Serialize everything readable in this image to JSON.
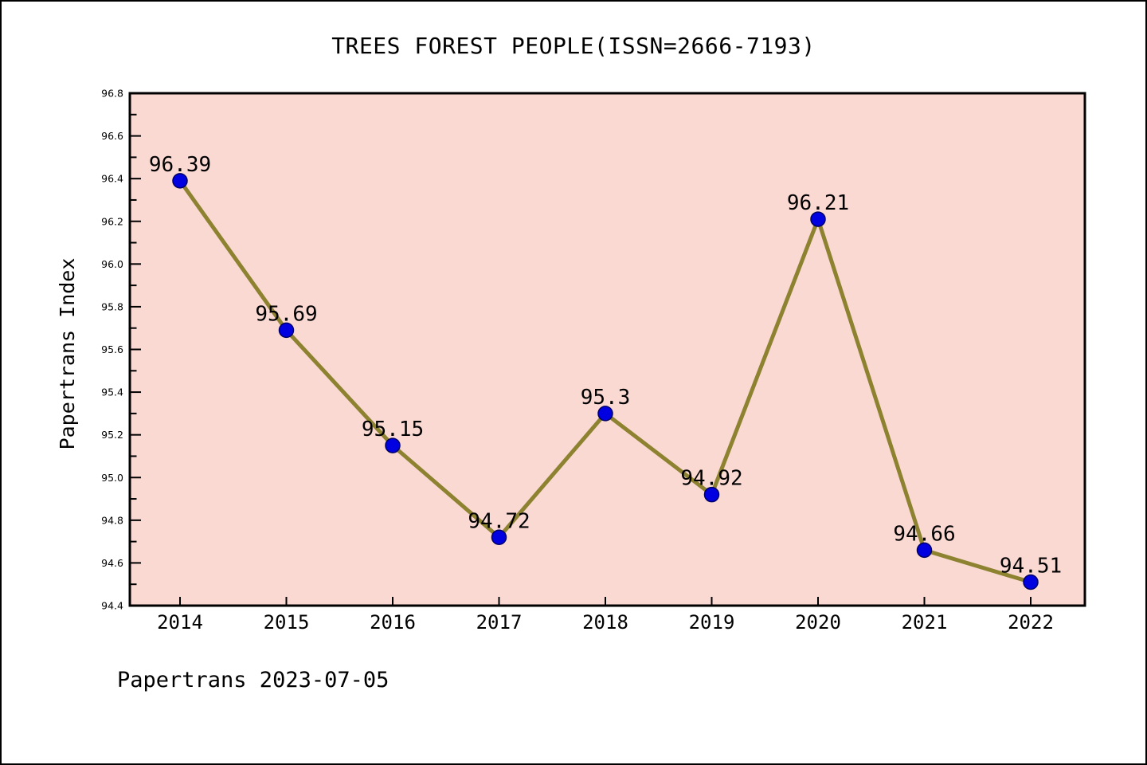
{
  "figure": {
    "title": "TREES FOREST PEOPLE(ISSN=2666-7193)",
    "footer": "Papertrans 2023-07-05"
  },
  "colors": {
    "page_background": "#FFFFFF",
    "page_border": "#000000",
    "plot_background": "#FBD9D3",
    "line": "#8D8230",
    "marker_fill": "#0000E0",
    "marker_edge": "#000066",
    "axis": "#000000",
    "text": "#000000"
  },
  "chart_data": {
    "type": "line",
    "title": "TREES FOREST PEOPLE(ISSN=2666-7193)",
    "xlabel": "",
    "ylabel": "Papertrans Index",
    "categories": [
      "2014",
      "2015",
      "2016",
      "2017",
      "2018",
      "2019",
      "2020",
      "2021",
      "2022"
    ],
    "values": [
      96.39,
      95.69,
      95.15,
      94.72,
      95.3,
      94.92,
      96.21,
      94.66,
      94.51
    ],
    "point_labels": [
      "96.39",
      "95.69",
      "95.15",
      "94.72",
      "95.3",
      "94.92",
      "96.21",
      "94.66",
      "94.51"
    ],
    "series_name": "Papertrans Index",
    "ylim": [
      94.4,
      96.8
    ],
    "ytick_step": 0.2,
    "yminor_step": 0.1,
    "grid": false,
    "legend_position": "none",
    "annotation": "Papertrans 2023-07-05"
  }
}
